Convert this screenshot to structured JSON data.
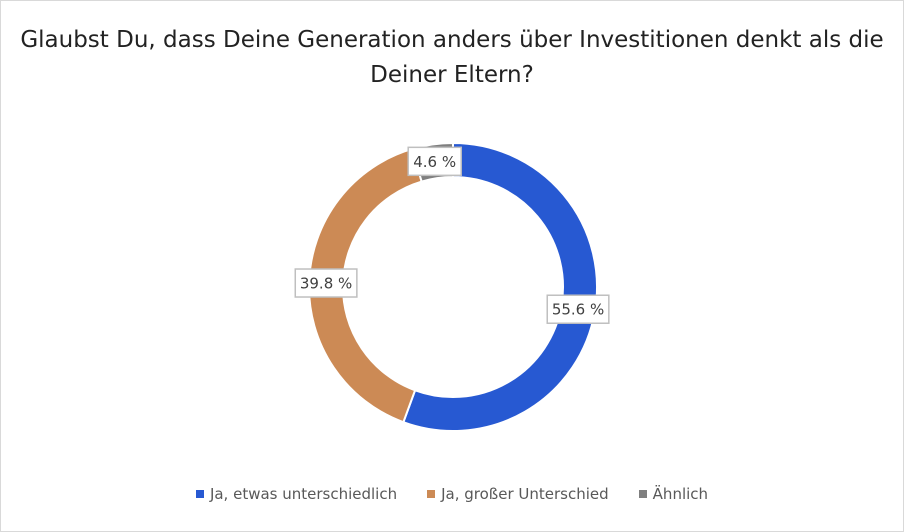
{
  "chart_data": {
    "type": "pie",
    "donut": true,
    "title": "Glaubst Du, dass Deine Generation anders über Investitionen denkt als die Deiner Eltern?",
    "categories": [
      "Ja, etwas unterschiedlich",
      "Ja, großer Unterschied",
      "Ähnlich"
    ],
    "values": [
      55.6,
      39.8,
      4.6
    ],
    "labels": [
      "55.6 %",
      "39.8 %",
      "4.6 %"
    ],
    "colors": [
      "#2759d2",
      "#cc8a55",
      "#7f7f7f"
    ],
    "legend_position": "bottom"
  }
}
